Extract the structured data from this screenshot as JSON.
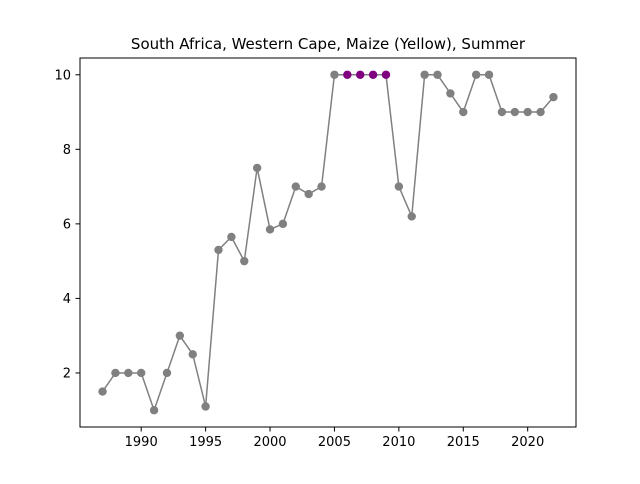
{
  "chart_data": {
    "type": "line",
    "title": "South Africa, Western Cape, Maize (Yellow), Summer",
    "xlabel": "",
    "ylabel": "",
    "xlim": [
      1985.25,
      2023.75
    ],
    "ylim": [
      0.55,
      10.45
    ],
    "xticks": [
      1990,
      1995,
      2000,
      2005,
      2010,
      2015,
      2020
    ],
    "yticks": [
      2,
      4,
      6,
      8,
      10
    ],
    "grid": false,
    "legend": "none",
    "x": [
      1987,
      1988,
      1989,
      1990,
      1991,
      1992,
      1993,
      1994,
      1995,
      1996,
      1997,
      1998,
      1999,
      2000,
      2001,
      2002,
      2003,
      2004,
      2005,
      2006,
      2007,
      2008,
      2009,
      2010,
      2011,
      2012,
      2013,
      2014,
      2015,
      2016,
      2017,
      2018,
      2019,
      2020,
      2021,
      2022
    ],
    "series": [
      {
        "values": [
          1.5,
          2,
          2,
          2,
          1,
          2,
          3,
          2.5,
          1.1,
          5.3,
          5.65,
          5,
          7.5,
          5.85,
          6,
          7,
          6.8,
          7,
          10,
          10,
          10,
          10,
          10,
          7,
          6.2,
          10,
          10,
          9.5,
          9,
          10,
          10,
          9,
          9,
          9,
          9,
          9.4
        ],
        "line_color": "#808080",
        "marker_color": "#808080",
        "highlight_x": [
          2006,
          2007,
          2008,
          2009
        ],
        "highlight_color": "#800080"
      }
    ]
  }
}
